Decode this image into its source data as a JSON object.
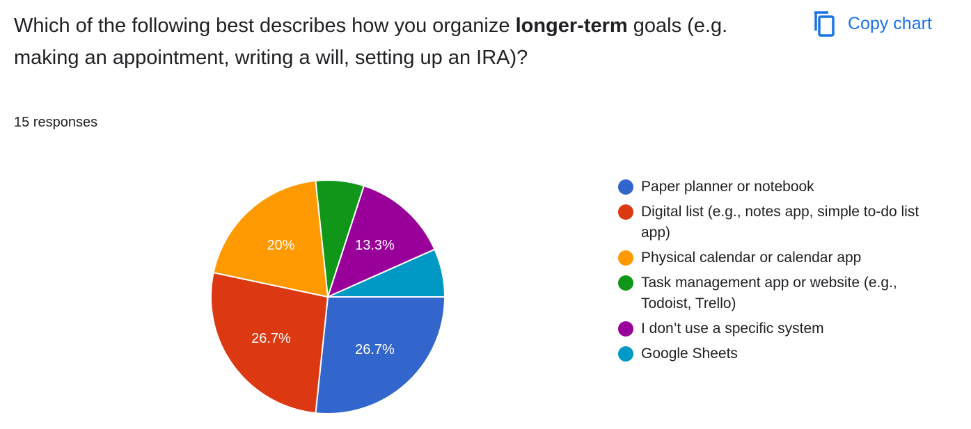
{
  "question": {
    "prefix": "Which of the following best describes how you organize ",
    "emphasis": "longer-term",
    "suffix": " goals (e.g. making an appointment, writing a will, setting up an IRA)?"
  },
  "toolbar": {
    "copy_label": "Copy chart",
    "copy_icon": "copy-icon"
  },
  "responses_label": "15 responses",
  "chart_data": {
    "type": "pie",
    "categories": [
      "Paper planner or notebook",
      "Digital list (e.g., notes app, simple to-do list app)",
      "Physical calendar or calendar app",
      "Task management app or website (e.g., Todoist, Trello)",
      "I don’t use a specific system",
      "Google Sheets"
    ],
    "values": [
      4,
      4,
      3,
      1,
      2,
      1
    ],
    "data_labels": [
      "26.7%",
      "26.7%",
      "20%",
      "",
      "13.3%",
      ""
    ],
    "colors": [
      "#3366cc",
      "#dc3912",
      "#ff9900",
      "#109618",
      "#990099",
      "#0099c6"
    ],
    "legend_position": "right"
  }
}
